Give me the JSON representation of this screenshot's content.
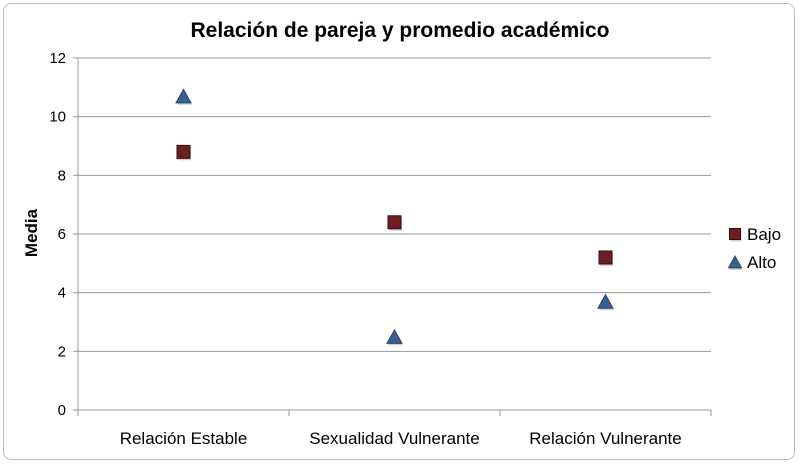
{
  "chart_data": {
    "type": "scatter",
    "title": "Relación de pareja y promedio académico",
    "xlabel": "",
    "ylabel": "Media",
    "categories": [
      "Relación Estable",
      "Sexualidad Vulnerante",
      "Relación Vulnerante"
    ],
    "ylim": [
      0,
      12
    ],
    "yticks": [
      0,
      2,
      4,
      6,
      8,
      10,
      12
    ],
    "grid": true,
    "legend_position": "right",
    "series": [
      {
        "name": "Bajo",
        "marker": "square",
        "color": "#6b1f22",
        "values": [
          8.8,
          6.4,
          5.2
        ]
      },
      {
        "name": "Alto",
        "marker": "triangle",
        "color": "#3b5f8f",
        "values": [
          10.7,
          2.5,
          3.7
        ]
      }
    ]
  }
}
